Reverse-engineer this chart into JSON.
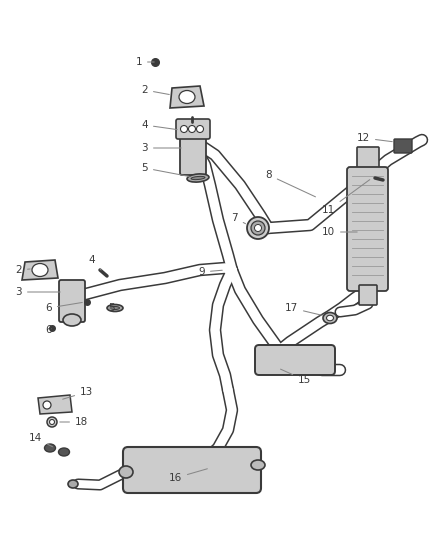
{
  "bg_color": "#ffffff",
  "line_color": "#3a3a3a",
  "label_color": "#3a3a3a",
  "leader_color": "#888888",
  "label_font_size": 7.5,
  "pipe_outer_color": "#3a3a3a",
  "pipe_inner_color": "#ffffff",
  "pipe_fill_color": "#d8d8d8"
}
